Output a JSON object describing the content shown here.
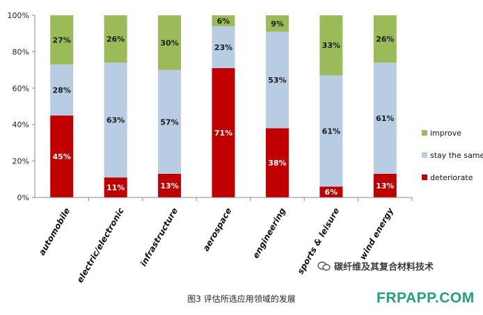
{
  "chart_data": {
    "type": "bar",
    "stacked": true,
    "percent_scale": true,
    "categories": [
      "automobile",
      "electric/electronic",
      "infrastructure",
      "aerospace",
      "engineering",
      "sports & leisure",
      "wind energy"
    ],
    "series": [
      {
        "name": "deteriorate",
        "color": "#c00000",
        "values": [
          45,
          11,
          13,
          71,
          38,
          6,
          13
        ]
      },
      {
        "name": "stay the same",
        "color": "#b8cce4",
        "values": [
          28,
          63,
          57,
          23,
          53,
          61,
          61
        ]
      },
      {
        "name": "improve",
        "color": "#9bbb59",
        "values": [
          27,
          26,
          30,
          6,
          9,
          33,
          26
        ]
      }
    ],
    "ylim": [
      0,
      100
    ],
    "y_ticks": [
      "0%",
      "20%",
      "40%",
      "60%",
      "80%",
      "100%"
    ],
    "legend_position": "right",
    "legend_order": [
      "improve",
      "stay the same",
      "deteriorate"
    ],
    "grid": false
  },
  "caption": "图3 评估所选应用领域的发展",
  "watermark": "碳纤维及其复合材料技术",
  "site": "FRPAPP.COM",
  "colors": {
    "deteriorate": "#c00000",
    "stay_same": "#b8cce4",
    "improve": "#9bbb59",
    "site": "#1fa37a"
  }
}
